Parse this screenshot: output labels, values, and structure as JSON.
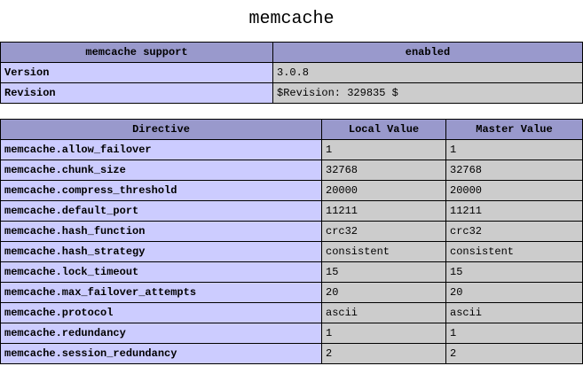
{
  "page": {
    "title": "memcache"
  },
  "colors": {
    "header_bg": "#9999cc",
    "label_bg": "#ccccff",
    "value_bg": "#cccccc",
    "border": "#000000",
    "page_bg": "#ffffff",
    "text": "#000000"
  },
  "info_table": {
    "headers": [
      "memcache support",
      "enabled"
    ],
    "rows": [
      {
        "label": "Version",
        "value": "3.0.8"
      },
      {
        "label": "Revision",
        "value": "$Revision: 329835 $"
      }
    ]
  },
  "directives_table": {
    "headers": [
      "Directive",
      "Local Value",
      "Master Value"
    ],
    "rows": [
      {
        "directive": "memcache.allow_failover",
        "local": "1",
        "master": "1"
      },
      {
        "directive": "memcache.chunk_size",
        "local": "32768",
        "master": "32768"
      },
      {
        "directive": "memcache.compress_threshold",
        "local": "20000",
        "master": "20000"
      },
      {
        "directive": "memcache.default_port",
        "local": "11211",
        "master": "11211"
      },
      {
        "directive": "memcache.hash_function",
        "local": "crc32",
        "master": "crc32"
      },
      {
        "directive": "memcache.hash_strategy",
        "local": "consistent",
        "master": "consistent"
      },
      {
        "directive": "memcache.lock_timeout",
        "local": "15",
        "master": "15"
      },
      {
        "directive": "memcache.max_failover_attempts",
        "local": "20",
        "master": "20"
      },
      {
        "directive": "memcache.protocol",
        "local": "ascii",
        "master": "ascii"
      },
      {
        "directive": "memcache.redundancy",
        "local": "1",
        "master": "1"
      },
      {
        "directive": "memcache.session_redundancy",
        "local": "2",
        "master": "2"
      }
    ]
  }
}
